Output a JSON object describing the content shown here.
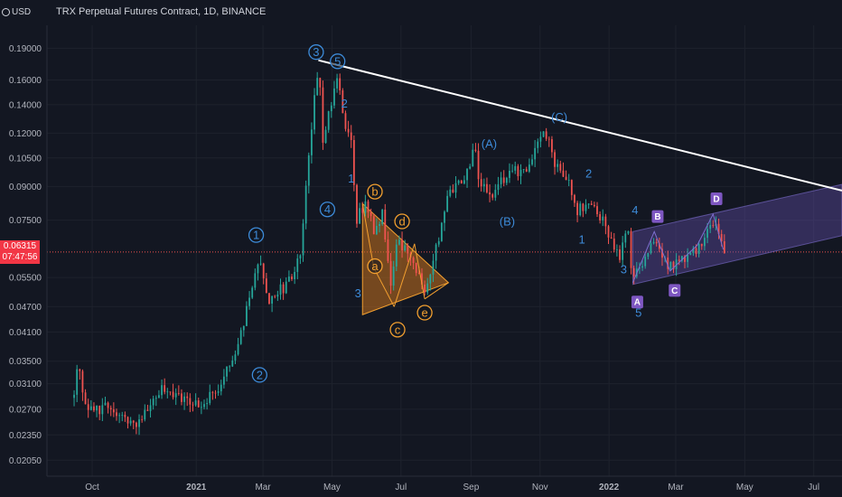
{
  "header": {
    "currency": "USD",
    "title": "TRX Perpetual Futures Contract, 1D, BINANCE"
  },
  "price_tag": {
    "price": "0.06315",
    "countdown": "07:47:56",
    "color": "#f23645"
  },
  "colors": {
    "background": "#131722",
    "up": "#26a69a",
    "down": "#ef5350",
    "wave_blue": "#3d8bd9",
    "wave_orange": "#f29f2f",
    "triangle_fill": "#c7711e",
    "channel_fill": "#5b4a9e",
    "badge_purple": "#7e57c2",
    "trendline": "#ffffff"
  },
  "chart_data": {
    "type": "candlestick",
    "title": "TRX Perpetual Futures Contract, 1D, BINANCE",
    "y_scale": "log",
    "ylim": [
      0.0188,
      0.215
    ],
    "y_ticks": [
      "0.19000",
      "0.16000",
      "0.14000",
      "0.12000",
      "0.10500",
      "0.09000",
      "0.07500",
      "0.06315",
      "0.05500",
      "0.04700",
      "0.04100",
      "0.03500",
      "0.03100",
      "0.02700",
      "0.02350",
      "0.02050"
    ],
    "x_ticks": [
      {
        "label": "Oct",
        "date": "2020-10-01",
        "bold": false
      },
      {
        "label": "2021",
        "date": "2021-01-01",
        "bold": true
      },
      {
        "label": "Mar",
        "date": "2021-03-01",
        "bold": false
      },
      {
        "label": "May",
        "date": "2021-05-01",
        "bold": false
      },
      {
        "label": "Jul",
        "date": "2021-07-01",
        "bold": false
      },
      {
        "label": "Sep",
        "date": "2021-09-01",
        "bold": false
      },
      {
        "label": "Nov",
        "date": "2021-11-01",
        "bold": false
      },
      {
        "label": "2022",
        "date": "2022-01-01",
        "bold": true
      },
      {
        "label": "Mar",
        "date": "2022-03-01",
        "bold": false
      },
      {
        "label": "May",
        "date": "2022-05-01",
        "bold": false
      },
      {
        "label": "Jul",
        "date": "2022-07-01",
        "bold": false
      }
    ],
    "xlim": [
      "2020-08-22",
      "2022-07-26"
    ],
    "last_price": 0.06315,
    "price_path": [
      [
        "2020-09-15",
        0.029
      ],
      [
        "2020-09-18",
        0.034
      ],
      [
        "2020-09-24",
        0.029
      ],
      [
        "2020-10-01",
        0.0265
      ],
      [
        "2020-10-15",
        0.0275
      ],
      [
        "2020-11-01",
        0.0255
      ],
      [
        "2020-11-10",
        0.025
      ],
      [
        "2020-11-25",
        0.029
      ],
      [
        "2020-12-05",
        0.0305
      ],
      [
        "2020-12-20",
        0.0285
      ],
      [
        "2020-12-31",
        0.0275
      ],
      [
        "2021-01-15",
        0.029
      ],
      [
        "2021-02-05",
        0.0355
      ],
      [
        "2021-02-20",
        0.054
      ],
      [
        "2021-02-27",
        0.061
      ],
      [
        "2021-03-05",
        0.049
      ],
      [
        "2021-03-20",
        0.052
      ],
      [
        "2021-03-31",
        0.059
      ],
      [
        "2021-04-03",
        0.062
      ],
      [
        "2021-04-12",
        0.115
      ],
      [
        "2021-04-19",
        0.178
      ],
      [
        "2021-04-23",
        0.118
      ],
      [
        "2021-04-28",
        0.135
      ],
      [
        "2021-05-07",
        0.163
      ],
      [
        "2021-05-12",
        0.128
      ],
      [
        "2021-05-18",
        0.115
      ],
      [
        "2021-05-22",
        0.075
      ],
      [
        "2021-06-01",
        0.083
      ],
      [
        "2021-06-08",
        0.069
      ],
      [
        "2021-06-15",
        0.078
      ],
      [
        "2021-06-22",
        0.052
      ],
      [
        "2021-06-28",
        0.067
      ],
      [
        "2021-07-05",
        0.063
      ],
      [
        "2021-07-15",
        0.058
      ],
      [
        "2021-07-21",
        0.051
      ],
      [
        "2021-07-31",
        0.062
      ],
      [
        "2021-08-12",
        0.087
      ],
      [
        "2021-08-25",
        0.095
      ],
      [
        "2021-09-06",
        0.111
      ],
      [
        "2021-09-08",
        0.091
      ],
      [
        "2021-09-20",
        0.086
      ],
      [
        "2021-10-01",
        0.095
      ],
      [
        "2021-10-20",
        0.101
      ],
      [
        "2021-11-06",
        0.122
      ],
      [
        "2021-11-12",
        0.104
      ],
      [
        "2021-11-25",
        0.093
      ],
      [
        "2021-12-04",
        0.079
      ],
      [
        "2021-12-15",
        0.082
      ],
      [
        "2021-12-27",
        0.075
      ],
      [
        "2022-01-10",
        0.061
      ],
      [
        "2022-01-18",
        0.071
      ],
      [
        "2022-01-22",
        0.054
      ],
      [
        "2022-01-31",
        0.061
      ],
      [
        "2022-02-10",
        0.069
      ],
      [
        "2022-02-22",
        0.058
      ],
      [
        "2022-03-05",
        0.061
      ],
      [
        "2022-03-20",
        0.064
      ],
      [
        "2022-03-30",
        0.073
      ],
      [
        "2022-04-04",
        0.075
      ],
      [
        "2022-04-10",
        0.068
      ],
      [
        "2022-04-14",
        0.06315
      ]
    ],
    "trendline": [
      [
        "2021-04-19",
        0.178
      ],
      [
        "2022-07-26",
        0.088
      ]
    ],
    "triangle": [
      [
        "2021-05-28",
        0.082
      ],
      [
        "2021-05-28",
        0.045
      ],
      [
        "2021-08-12",
        0.0535
      ]
    ],
    "triangle_lines": [
      [
        [
          "2021-05-28",
          0.082
        ],
        [
          "2021-06-07",
          0.058
        ]
      ],
      [
        [
          "2021-06-07",
          0.058
        ],
        [
          "2021-06-25",
          0.047
        ]
      ],
      [
        [
          "2021-06-25",
          0.047
        ],
        [
          "2021-07-13",
          0.066
        ]
      ],
      [
        [
          "2021-07-13",
          0.066
        ],
        [
          "2021-07-22",
          0.049
        ]
      ],
      [
        [
          "2021-07-22",
          0.049
        ],
        [
          "2021-08-12",
          0.0535
        ]
      ]
    ],
    "channel": [
      [
        "2022-01-22",
        0.0705
      ],
      [
        "2022-07-26",
        0.091
      ],
      [
        "2022-07-26",
        0.069
      ],
      [
        "2022-01-22",
        0.053
      ]
    ],
    "channel_zigzag": [
      [
        "2022-01-22",
        0.0535
      ],
      [
        "2022-02-10",
        0.0705
      ],
      [
        "2022-02-24",
        0.057
      ],
      [
        "2022-03-20",
        0.0655
      ],
      [
        "2022-04-03",
        0.0775
      ],
      [
        "2022-04-12",
        0.064
      ]
    ],
    "annotations": [
      {
        "text": "3",
        "date": "2021-04-17",
        "price": 0.186,
        "style": "circle-blue"
      },
      {
        "text": "5",
        "date": "2021-05-06",
        "price": 0.177,
        "style": "circle-blue"
      },
      {
        "text": "2",
        "date": "2021-05-12",
        "price": 0.141,
        "style": "plain-blue"
      },
      {
        "text": "1",
        "date": "2021-05-18",
        "price": 0.094,
        "style": "plain-blue"
      },
      {
        "text": "4",
        "date": "2021-04-27",
        "price": 0.0795,
        "style": "circle-blue"
      },
      {
        "text": "1",
        "date": "2021-02-23",
        "price": 0.0692,
        "style": "circle-blue"
      },
      {
        "text": "2",
        "date": "2021-02-26",
        "price": 0.0325,
        "style": "circle-blue"
      },
      {
        "text": "3",
        "date": "2021-05-24",
        "price": 0.0505,
        "style": "plain-blue"
      },
      {
        "text": "b",
        "date": "2021-06-08",
        "price": 0.0875,
        "style": "circle-orange"
      },
      {
        "text": "a",
        "date": "2021-06-08",
        "price": 0.0585,
        "style": "circle-orange"
      },
      {
        "text": "d",
        "date": "2021-07-02",
        "price": 0.0745,
        "style": "circle-orange"
      },
      {
        "text": "c",
        "date": "2021-06-28",
        "price": 0.0415,
        "style": "circle-orange"
      },
      {
        "text": "e",
        "date": "2021-07-22",
        "price": 0.0455,
        "style": "circle-orange"
      },
      {
        "text": "(A)",
        "date": "2021-09-17",
        "price": 0.1135,
        "style": "plain-blue"
      },
      {
        "text": "(B)",
        "date": "2021-10-03",
        "price": 0.0745,
        "style": "plain-blue"
      },
      {
        "text": "(C)",
        "date": "2021-11-18",
        "price": 0.131,
        "style": "plain-blue"
      },
      {
        "text": "2",
        "date": "2021-12-14",
        "price": 0.0965,
        "style": "plain-blue"
      },
      {
        "text": "1",
        "date": "2021-12-08",
        "price": 0.0675,
        "style": "plain-blue"
      },
      {
        "text": "4",
        "date": "2022-01-24",
        "price": 0.0792,
        "style": "plain-blue"
      },
      {
        "text": "3",
        "date": "2022-01-14",
        "price": 0.0575,
        "style": "plain-blue"
      },
      {
        "text": "5",
        "date": "2022-01-27",
        "price": 0.0455,
        "style": "plain-blue"
      },
      {
        "text": "A",
        "date": "2022-01-26",
        "price": 0.0482,
        "style": "badge-purple"
      },
      {
        "text": "B",
        "date": "2022-02-13",
        "price": 0.0765,
        "style": "badge-purple"
      },
      {
        "text": "C",
        "date": "2022-02-28",
        "price": 0.0513,
        "style": "badge-purple"
      },
      {
        "text": "D",
        "date": "2022-04-06",
        "price": 0.0842,
        "style": "badge-purple"
      }
    ]
  }
}
